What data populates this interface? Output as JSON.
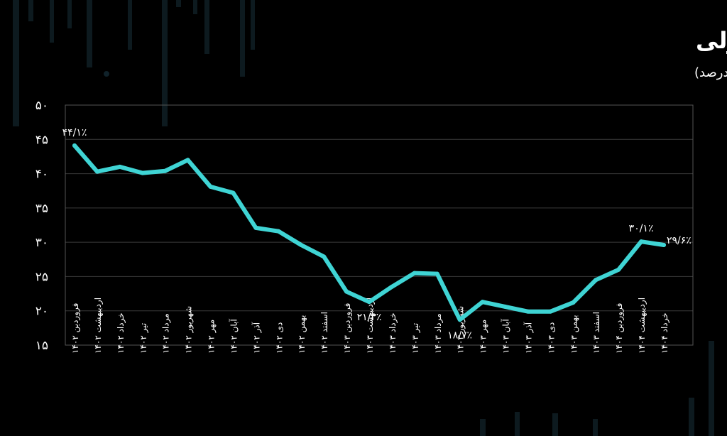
{
  "chart_data": {
    "type": "line",
    "title": "رشد پایه‌پولی",
    "subtitle": "(واحد: درصد)",
    "ylim": [
      15,
      50
    ],
    "yticks": [
      15,
      20,
      25,
      30,
      35,
      40,
      45,
      50
    ],
    "ytick_labels": [
      "۱۵",
      "۲۰",
      "۲۵",
      "۳۰",
      "۳۵",
      "۴۰",
      "۴۵",
      "۵۰"
    ],
    "grid": true,
    "line_color": "#3fd4d4",
    "categories": [
      "فروردین ۱۴۰۲",
      "اردیبهشت ۱۴۰۲",
      "خرداد ۱۴۰۲",
      "تیر ۱۴۰۲",
      "مرداد ۱۴۰۲",
      "شهریور ۱۴۰۲",
      "مهر ۱۴۰۲",
      "آبان ۱۴۰۲",
      "آذر ۱۴۰۲",
      "دی ۱۴۰۲",
      "بهمن ۱۴۰۲",
      "اسفند ۱۴۰۲",
      "فروردین ۱۴۰۳",
      "اردیبهشت ۱۴۰۳",
      "خرداد ۱۴۰۳",
      "تیر ۱۴۰۳",
      "مرداد ۱۴۰۳",
      "شهریور ۱۴۰۳",
      "مهر ۱۴۰۳",
      "آبان ۱۴۰۳",
      "آذر ۱۴۰۳",
      "دی ۱۴۰۳",
      "بهمن ۱۴۰۳",
      "اسفند ۱۴۰۳",
      "فروردین ۱۴۰۴",
      "اردیبهشت ۱۴۰۴",
      "خرداد ۱۴۰۴"
    ],
    "values": [
      44.1,
      40.3,
      41.0,
      40.1,
      40.4,
      42.0,
      38.1,
      37.2,
      32.1,
      31.6,
      29.6,
      27.9,
      22.8,
      21.3,
      23.5,
      25.5,
      25.4,
      18.7,
      21.3,
      20.6,
      19.9,
      19.9,
      21.2,
      24.5,
      26.0,
      30.1,
      29.6
    ],
    "annotations": [
      {
        "index": 0,
        "text": "۴۴/۱٪",
        "position": "above"
      },
      {
        "index": 13,
        "text": "۲۱/۳٪",
        "position": "below"
      },
      {
        "index": 17,
        "text": "۱۸/۷٪",
        "position": "below"
      },
      {
        "index": 25,
        "text": "۳۰/۱٪",
        "position": "above"
      },
      {
        "index": 26,
        "text": "۲۹/۶٪",
        "position": "right"
      }
    ]
  }
}
